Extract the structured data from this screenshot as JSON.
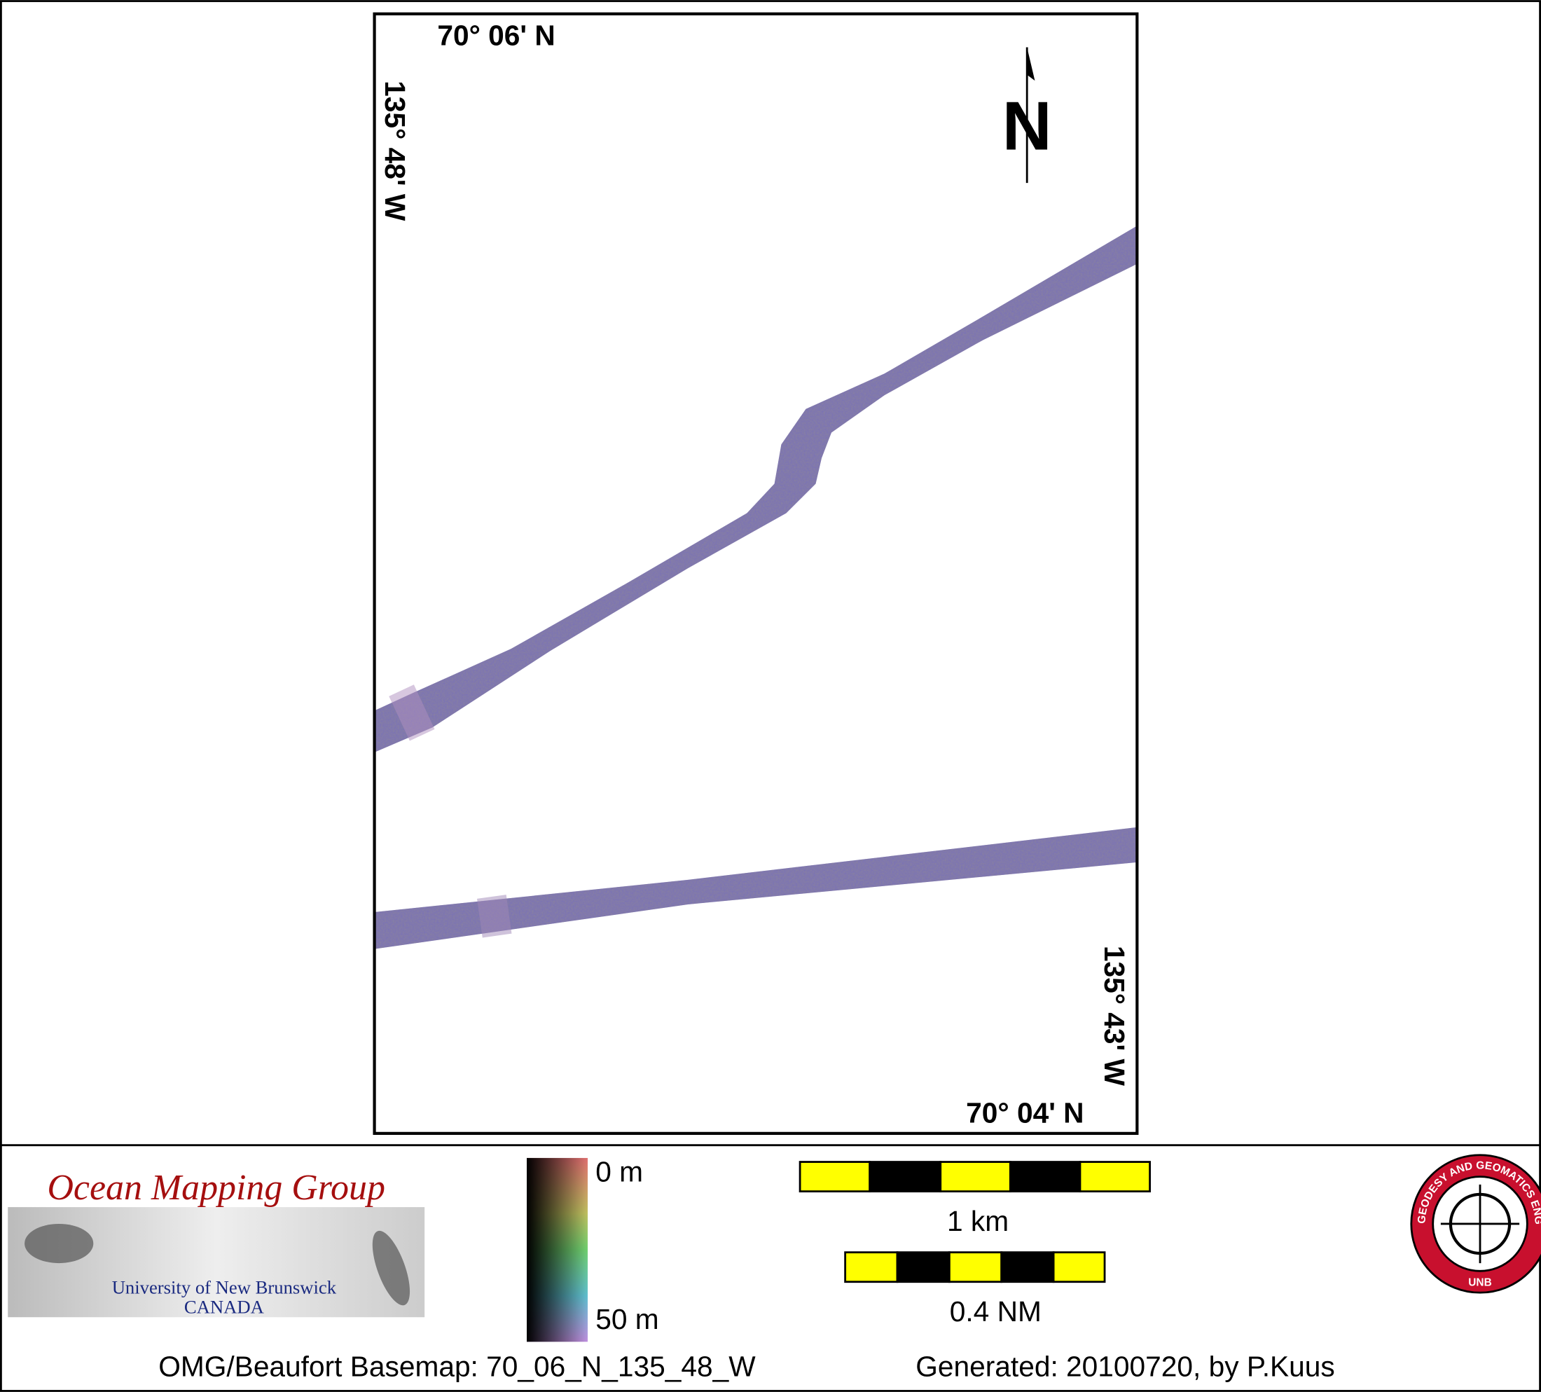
{
  "map": {
    "top_lat": "70° 06' N",
    "left_lon": "135° 48' W",
    "right_lon": "135° 43' W",
    "bottom_lat": "70° 04' N",
    "north": "N"
  },
  "logo": {
    "title": "Ocean Mapping Group",
    "university": "University of New Brunswick",
    "country": "CANADA"
  },
  "depth_scale": {
    "top_label": "0 m",
    "bottom_label": "50 m"
  },
  "scale_bars": {
    "km_label": "1 km",
    "nm_label": "0.4 NM"
  },
  "footer": {
    "basemap": "OMG/Beaufort Basemap: 70_06_N_135_48_W",
    "generated": "Generated: 20100720, by P.Kuus"
  },
  "unb_logo": {
    "ring_text": "GEODESY AND GEOMATICS ENGINEERING",
    "center_text": "UNB"
  }
}
